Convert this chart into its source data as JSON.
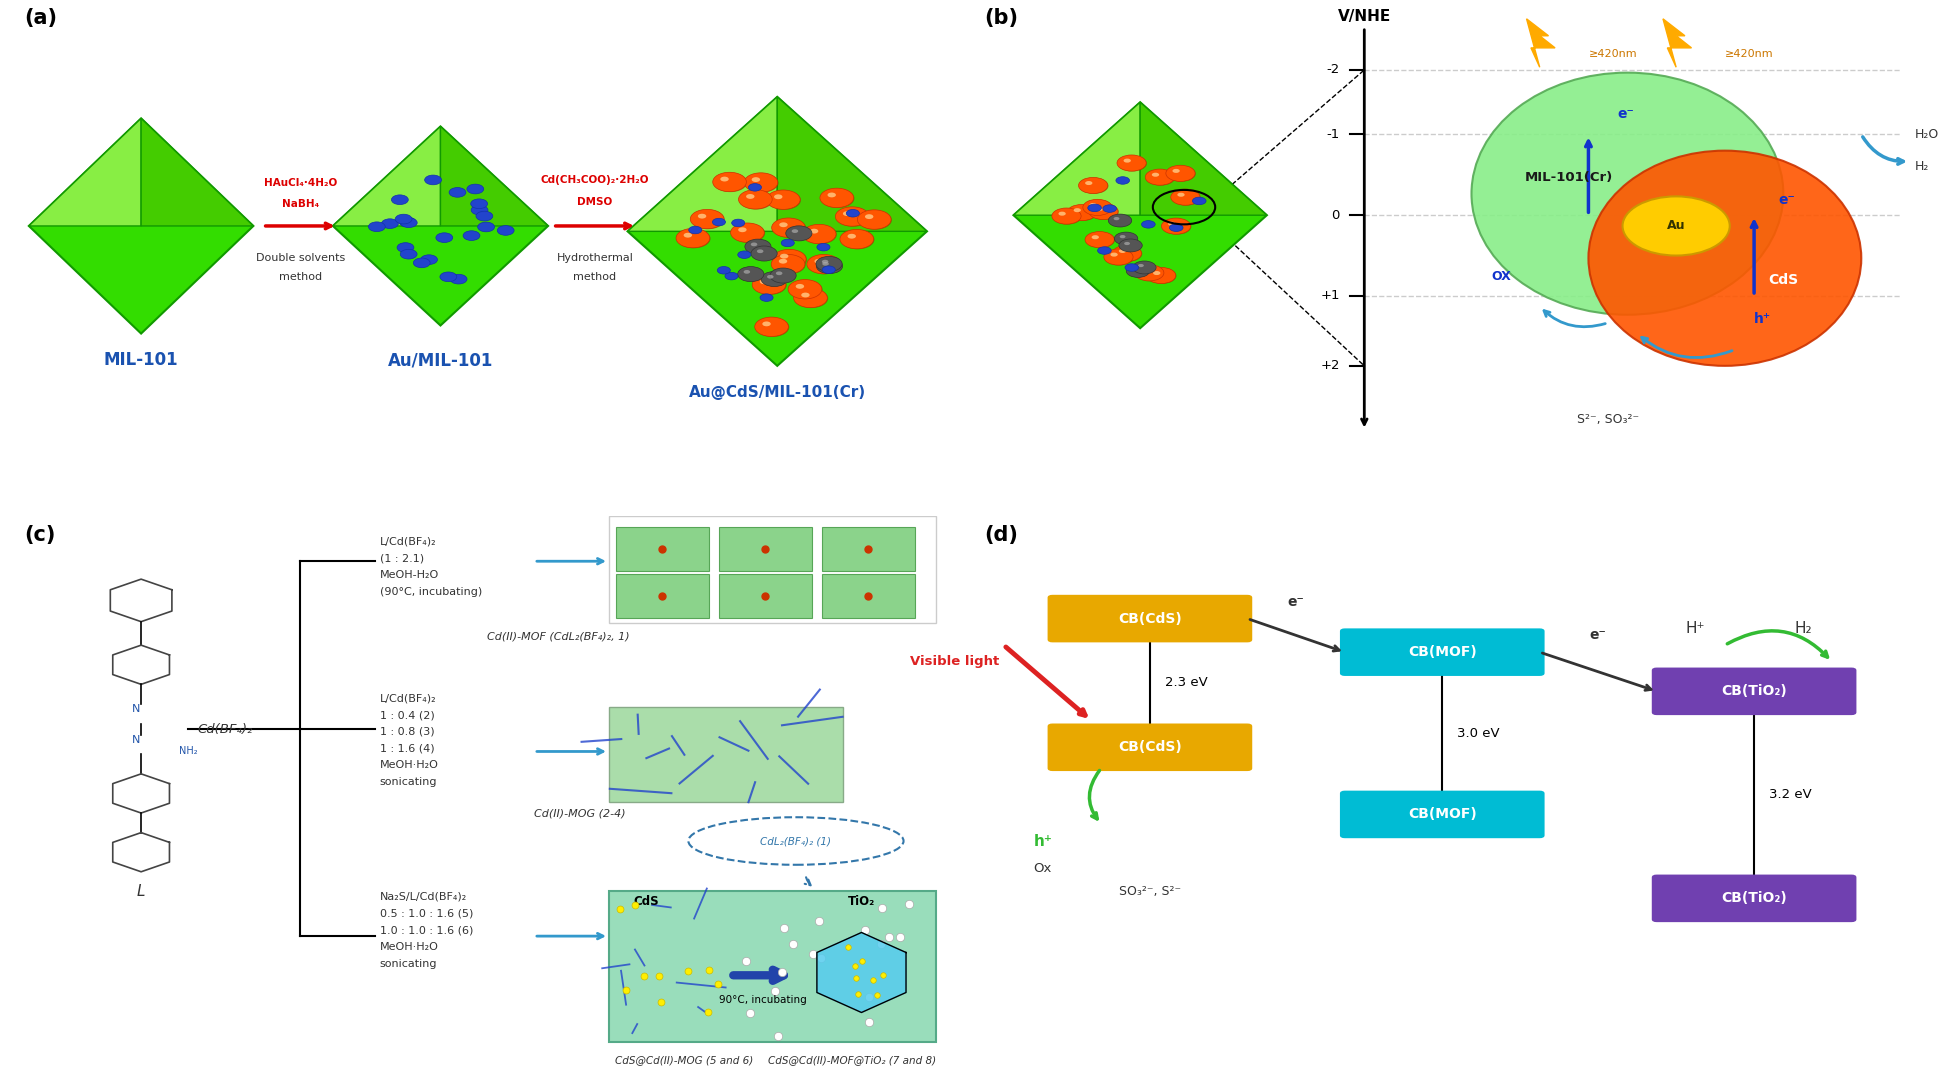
{
  "panel_a": {
    "label": "(a)",
    "arrow1_text1": "HAuCl₄·4H₂O",
    "arrow1_text2": "NaBH₄",
    "arrow1_text3": "Double solvents",
    "arrow1_text4": "method",
    "arrow2_text1": "Cd(CH₃COO)₂·2H₂O",
    "arrow2_text2": "DMSO",
    "arrow2_text3": "Hydrothermal",
    "arrow2_text4": "method",
    "label1": "MIL-101",
    "label2": "Au/MIL-101",
    "label3": "Au@CdS/MIL-101(Cr)",
    "label_color": "#1a52b0",
    "arrow_color": "#dd0000"
  },
  "panel_b": {
    "label": "(b)",
    "ylabel": "V/NHE",
    "tick_labels": [
      "-2",
      "-1",
      "0",
      "+1",
      "+2"
    ],
    "mil101_label": "MIL-101(Cr)",
    "au_label": "Au",
    "cds_label": "CdS",
    "h2o_label": "H₂O",
    "h2_label": "H₂",
    "ox_label": "OX",
    "h_label": "h⁺",
    "e_label": "e⁻",
    "sacrificial": "S²⁻, SO₃²⁻",
    "light_text": "≥420nm",
    "mil_color": "#77ee88",
    "cds_color": "#ff5500",
    "au_color": "#ffcc00"
  },
  "panel_c": {
    "label": "(c)",
    "ligand_label": "L",
    "cd_reagent": "Cd(BF₄)₂",
    "b1l1": "L/Cd(BF₄)₂",
    "b1l2": "(1 : 2.1)",
    "b1l3": "MeOH-H₂O",
    "b1l4": "(90°C, incubating)",
    "b1_product": "Cd(II)-MOF (CdL₂(BF₄)₂, 1)",
    "b2l1": "L/Cd(BF₄)₂",
    "b2l2": "1 : 0.4 (2)",
    "b2l3": "1 : 0.8 (3)",
    "b2l4": "1 : 1.6 (4)",
    "b2l5": "MeOH·H₂O",
    "b2l6": "sonicating",
    "b2_product": "Cd(II)-MOG (2-4)",
    "b3l1": "Na₂S/L/Cd(BF₄)₂",
    "b3l2": "0.5 : 1.0 : 1.6 (5)",
    "b3l3": "1.0 : 1.0 : 1.6 (6)",
    "b3l4": "MeOH·H₂O",
    "b3l5": "sonicating",
    "cds_label": "CdS",
    "tio2_label": "TiO₂",
    "temp_label": "90°C, incubating",
    "cdl_label": "CdL₂(BF₄)₂ (1)",
    "bot_label1": "CdS@Cd(II)-MOG (5 and 6)",
    "bot_label2": "CdS@Cd(II)-MOF@TiO₂ (7 and 8)"
  },
  "panel_d": {
    "label": "(d)",
    "cb_cds": "CB(CdS)",
    "cb_mof": "CB(MOF)",
    "cb_tio2": "CB(TiO₂)",
    "visible_light": "Visible light",
    "ev1": "2.3 eV",
    "ev2": "3.0 eV",
    "ev3": "3.2 eV",
    "h_plus": "H⁺",
    "h2": "H₂",
    "ox": "Ox",
    "so3s2": "SO₃²⁻, S²⁻",
    "e_label": "e⁻",
    "h_label": "h⁺",
    "cb_cds_color": "#e8a800",
    "cb_mof_color": "#00bcd4",
    "cb_tio2_color": "#7040b0"
  },
  "bg_color": "#ffffff",
  "fig_width": 19.49,
  "fig_height": 10.76
}
